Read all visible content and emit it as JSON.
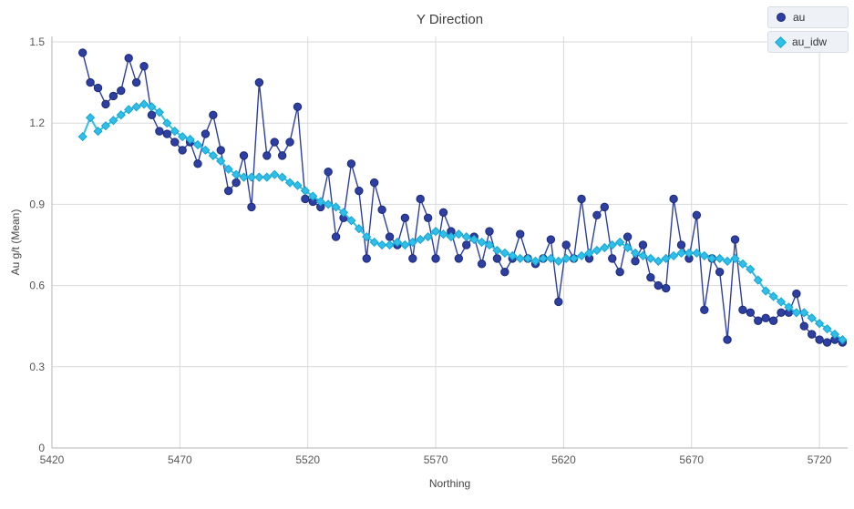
{
  "chart_data": {
    "type": "line",
    "title": "Y Direction",
    "xlabel": "Northing",
    "ylabel": "Au g/t (Mean)",
    "xlim": [
      5420,
      5731
    ],
    "ylim": [
      0,
      1.5
    ],
    "x_ticks": [
      5420,
      5470,
      5520,
      5570,
      5620,
      5670,
      5720
    ],
    "y_ticks": [
      0,
      0.3,
      0.6,
      0.9,
      1.2,
      1.5
    ],
    "grid": true,
    "legend_position": "top-right",
    "colors": {
      "grid": "#d9d9d9",
      "axis": "#b5b5b5",
      "title_text": "#3d3d3d",
      "tick_text": "#565656",
      "legend_bg": "#eef2f7",
      "legend_border": "#d6dde5"
    },
    "x": [
      5432,
      5435,
      5438,
      5441,
      5444,
      5447,
      5450,
      5453,
      5456,
      5459,
      5462,
      5465,
      5468,
      5471,
      5474,
      5477,
      5480,
      5483,
      5486,
      5489,
      5492,
      5495,
      5498,
      5501,
      5504,
      5507,
      5510,
      5513,
      5516,
      5519,
      5522,
      5525,
      5528,
      5531,
      5534,
      5537,
      5540,
      5543,
      5546,
      5549,
      5552,
      5555,
      5558,
      5561,
      5564,
      5567,
      5570,
      5573,
      5576,
      5579,
      5582,
      5585,
      5588,
      5591,
      5594,
      5597,
      5600,
      5603,
      5606,
      5609,
      5612,
      5615,
      5618,
      5621,
      5624,
      5627,
      5630,
      5633,
      5636,
      5639,
      5642,
      5645,
      5648,
      5651,
      5654,
      5657,
      5660,
      5663,
      5666,
      5669,
      5672,
      5675,
      5678,
      5681,
      5684,
      5687,
      5690,
      5693,
      5696,
      5699,
      5702,
      5705,
      5708,
      5711,
      5714,
      5717,
      5720,
      5723,
      5726,
      5729
    ],
    "series": [
      {
        "name": "au",
        "marker": "circle",
        "color": "#2e3fa3",
        "marker_stroke": "#1c2a75",
        "line_width": 1.4,
        "values": [
          1.46,
          1.35,
          1.33,
          1.27,
          1.3,
          1.32,
          1.44,
          1.35,
          1.41,
          1.23,
          1.17,
          1.16,
          1.13,
          1.1,
          1.13,
          1.05,
          1.16,
          1.23,
          1.1,
          0.95,
          0.98,
          1.08,
          0.89,
          1.35,
          1.08,
          1.13,
          1.08,
          1.13,
          1.26,
          0.92,
          0.91,
          0.89,
          1.02,
          0.78,
          0.85,
          1.05,
          0.95,
          0.7,
          0.98,
          0.88,
          0.78,
          0.75,
          0.85,
          0.7,
          0.92,
          0.85,
          0.7,
          0.87,
          0.8,
          0.7,
          0.75,
          0.78,
          0.68,
          0.8,
          0.7,
          0.65,
          0.7,
          0.79,
          0.7,
          0.68,
          0.7,
          0.77,
          0.54,
          0.75,
          0.7,
          0.92,
          0.7,
          0.86,
          0.89,
          0.7,
          0.65,
          0.78,
          0.69,
          0.75,
          0.63,
          0.6,
          0.59,
          0.92,
          0.75,
          0.7,
          0.86,
          0.51,
          0.7,
          0.65,
          0.4,
          0.77,
          0.51,
          0.5,
          0.47,
          0.48,
          0.47,
          0.5,
          0.5,
          0.57,
          0.45,
          0.42,
          0.4,
          0.39,
          0.4,
          0.39
        ]
      },
      {
        "name": "au_idw",
        "marker": "diamond",
        "color": "#30bfe9",
        "marker_stroke": "#14a5d2",
        "line_width": 2,
        "values": [
          1.15,
          1.22,
          1.17,
          1.19,
          1.21,
          1.23,
          1.25,
          1.26,
          1.27,
          1.26,
          1.24,
          1.2,
          1.17,
          1.15,
          1.14,
          1.12,
          1.1,
          1.08,
          1.06,
          1.03,
          1.01,
          1.0,
          1.0,
          1.0,
          1.0,
          1.01,
          1.0,
          0.98,
          0.97,
          0.95,
          0.93,
          0.91,
          0.9,
          0.89,
          0.87,
          0.84,
          0.81,
          0.78,
          0.76,
          0.75,
          0.75,
          0.76,
          0.75,
          0.76,
          0.77,
          0.78,
          0.8,
          0.79,
          0.78,
          0.79,
          0.78,
          0.77,
          0.76,
          0.75,
          0.73,
          0.72,
          0.71,
          0.7,
          0.7,
          0.69,
          0.7,
          0.7,
          0.69,
          0.7,
          0.7,
          0.71,
          0.72,
          0.73,
          0.74,
          0.75,
          0.76,
          0.74,
          0.72,
          0.71,
          0.7,
          0.69,
          0.7,
          0.71,
          0.72,
          0.72,
          0.72,
          0.71,
          0.7,
          0.7,
          0.69,
          0.7,
          0.68,
          0.66,
          0.62,
          0.58,
          0.56,
          0.54,
          0.52,
          0.5,
          0.5,
          0.48,
          0.46,
          0.44,
          0.42,
          0.4
        ]
      }
    ]
  }
}
